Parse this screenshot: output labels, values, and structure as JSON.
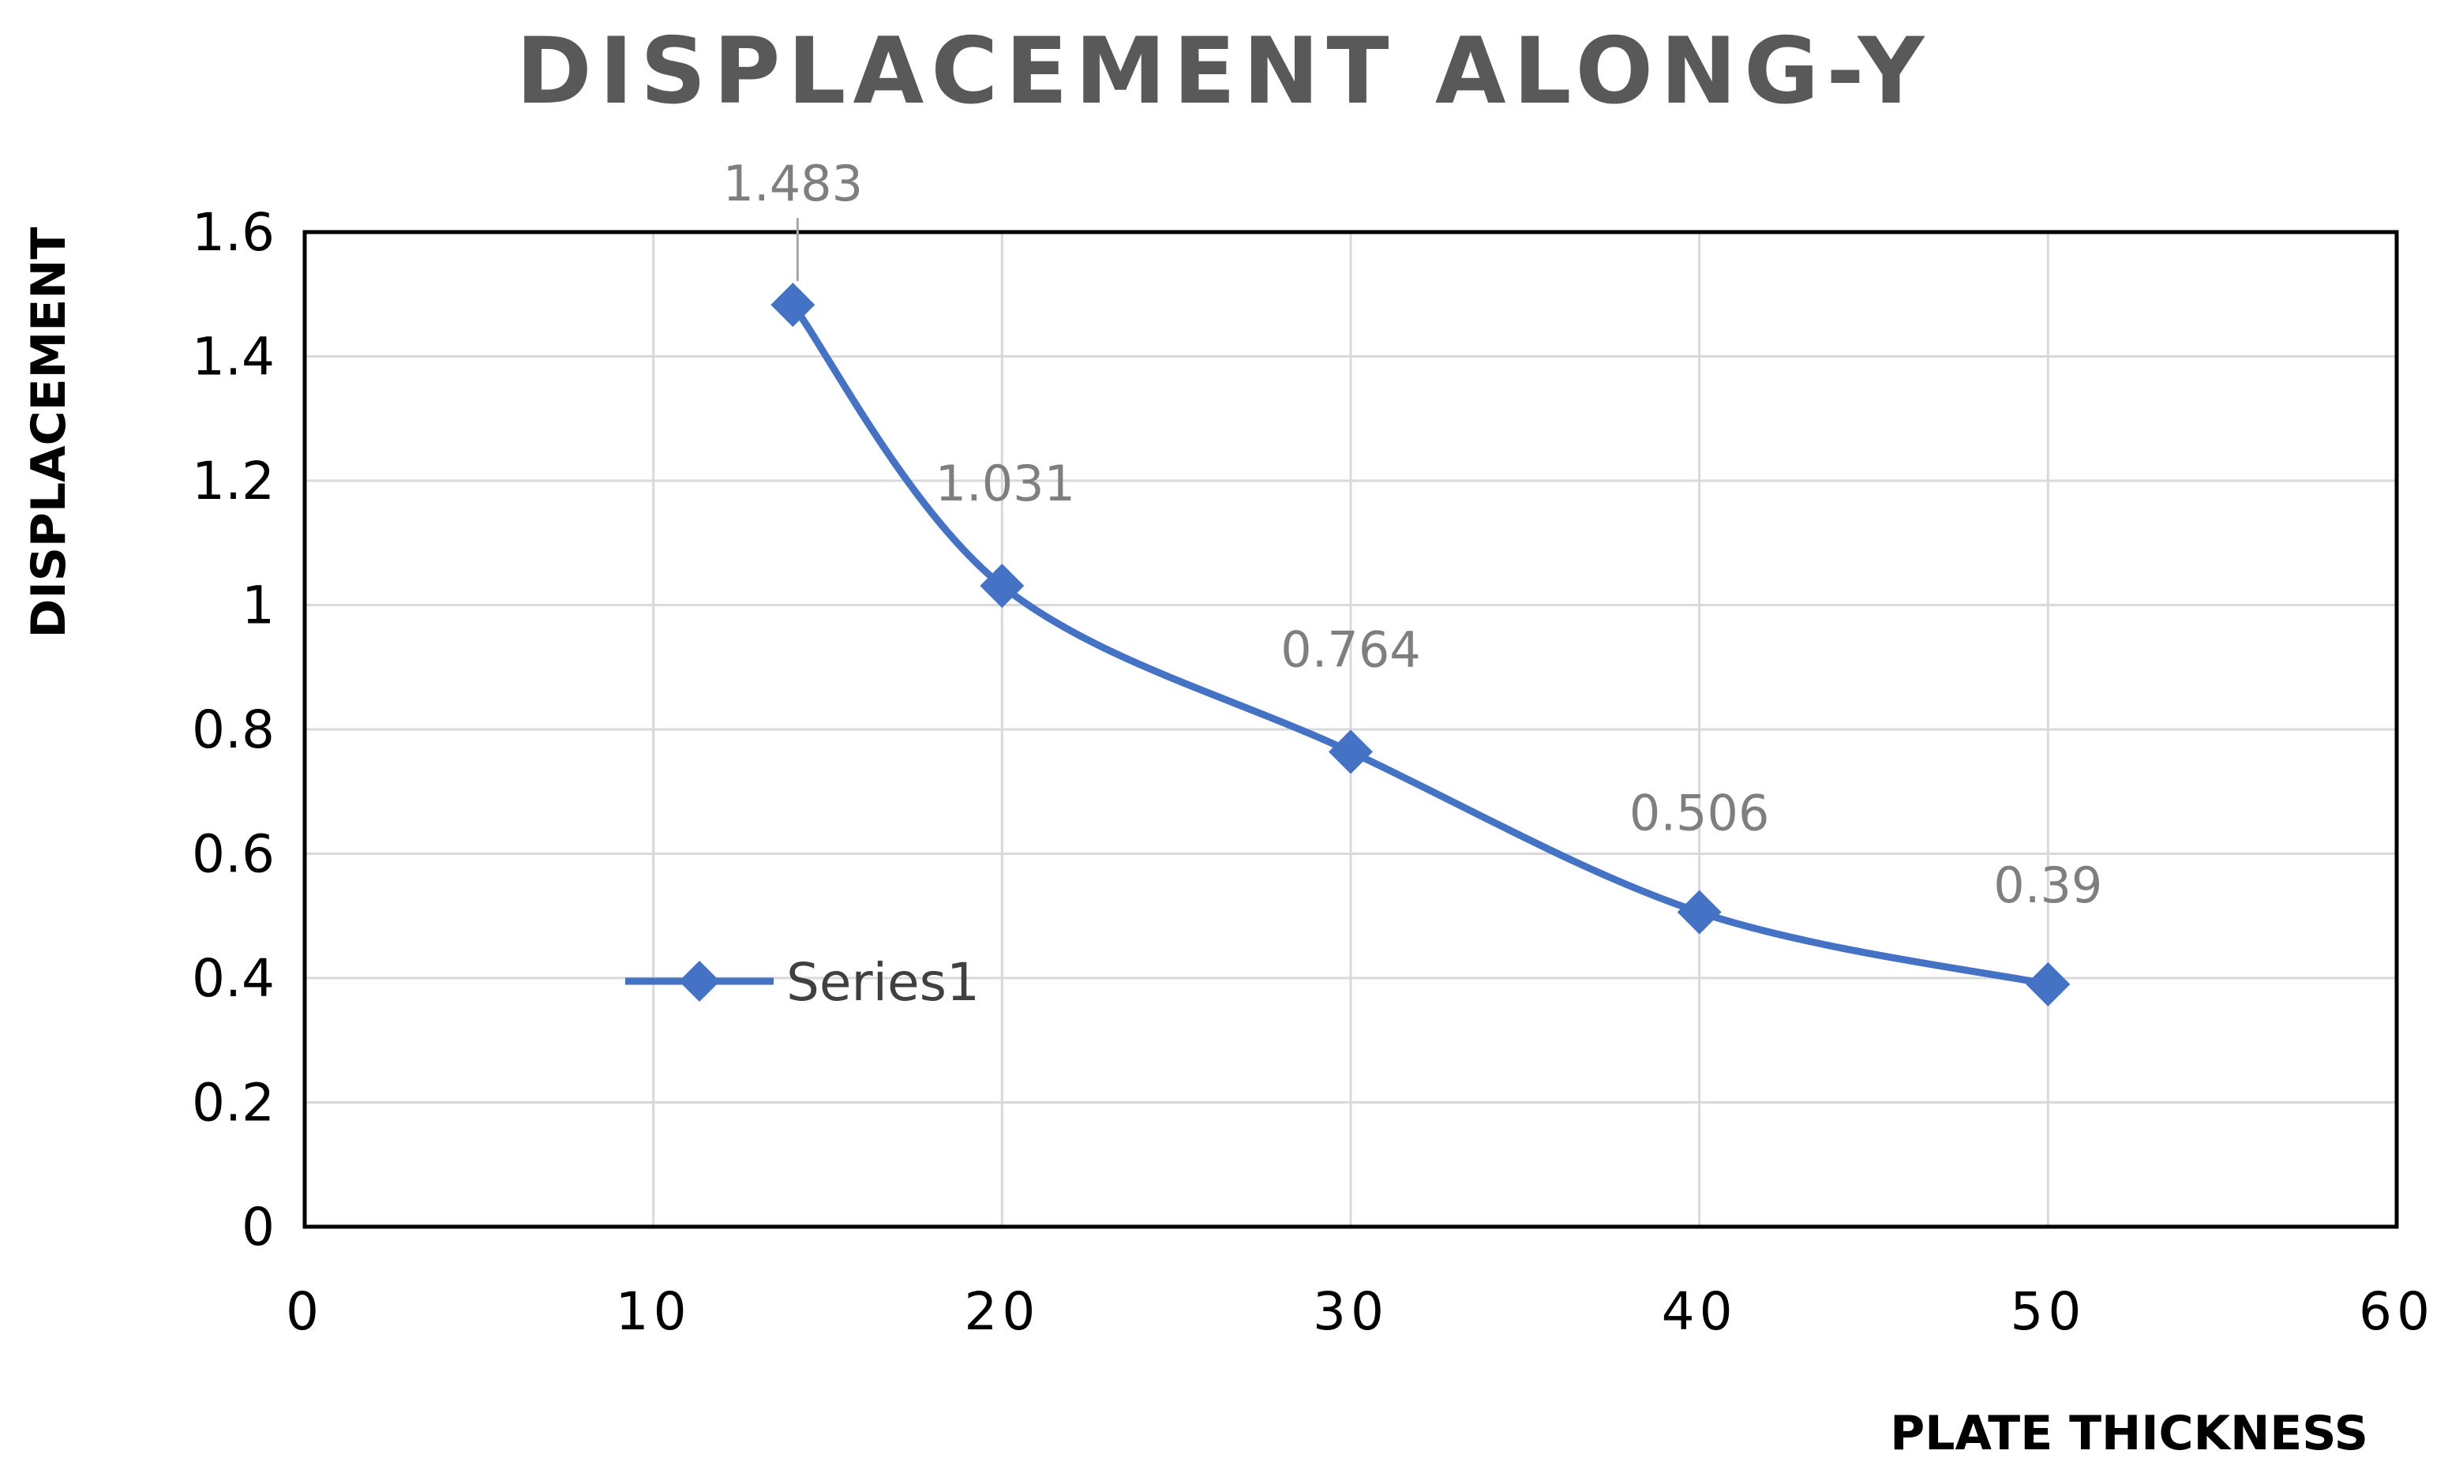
{
  "chart_data": {
    "type": "scatter",
    "title": "DISPLACEMENT ALONG-Y",
    "xlabel": "PLATE THICKNESS",
    "ylabel": "DISPLACEMENT",
    "xlim": [
      0,
      60
    ],
    "ylim": [
      0,
      1.6
    ],
    "xticks": [
      0,
      10,
      20,
      30,
      40,
      50,
      60
    ],
    "yticks": [
      0,
      0.2,
      0.4,
      0.6,
      0.8,
      1,
      1.2,
      1.4,
      1.6
    ],
    "grid": true,
    "smooth_line": true,
    "markers": "diamond",
    "legend_position": "left-center",
    "series": [
      {
        "name": "Series1",
        "color": "#4472c4",
        "x": [
          14,
          20,
          30,
          40,
          50
        ],
        "y": [
          1.483,
          1.031,
          0.764,
          0.506,
          0.39
        ],
        "labels": [
          "1.483",
          "1.031",
          "0.764",
          "0.506",
          "0.39"
        ]
      }
    ]
  }
}
